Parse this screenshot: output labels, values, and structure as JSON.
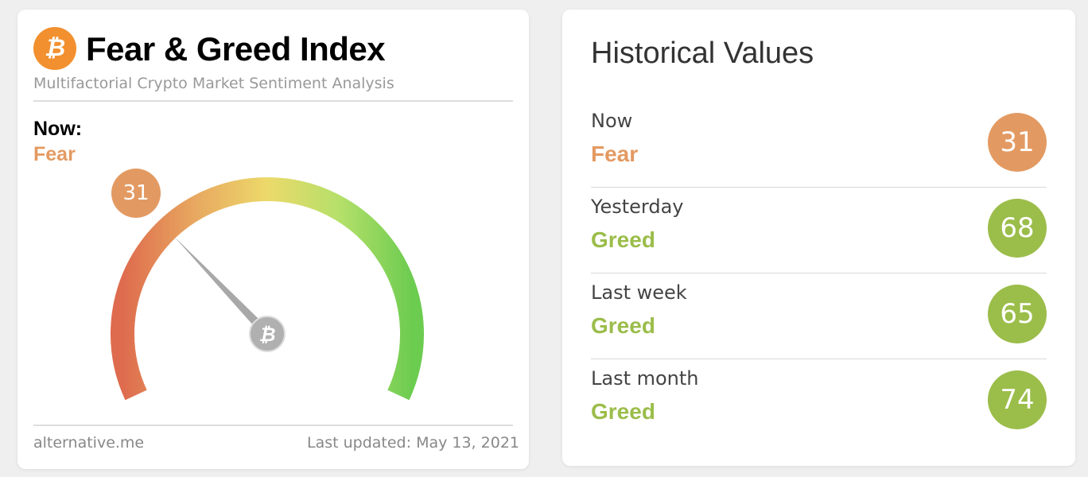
{
  "widget": {
    "title": "Fear & Greed Index",
    "subtitle": "Multifactorial Crypto Market Sentiment Analysis",
    "now_label": "Now:",
    "now_classification": "Fear",
    "value": 31,
    "value_text": "31",
    "gauge_min": 0,
    "gauge_max": 100,
    "source": "alternative.me",
    "last_updated": "Last updated: May 13, 2021",
    "logo_icon": "bitcoin-icon",
    "colors": {
      "fear": "#e39a62",
      "greed": "#9bbd4a",
      "logo": "#f2902f"
    }
  },
  "historical": {
    "title": "Historical Values",
    "rows": [
      {
        "label": "Now",
        "classification": "Fear",
        "value": "31",
        "color": "#e39a62"
      },
      {
        "label": "Yesterday",
        "classification": "Greed",
        "value": "68",
        "color": "#9bbd4a"
      },
      {
        "label": "Last week",
        "classification": "Greed",
        "value": "65",
        "color": "#9bbd4a"
      },
      {
        "label": "Last month",
        "classification": "Greed",
        "value": "74",
        "color": "#9bbd4a"
      }
    ]
  }
}
